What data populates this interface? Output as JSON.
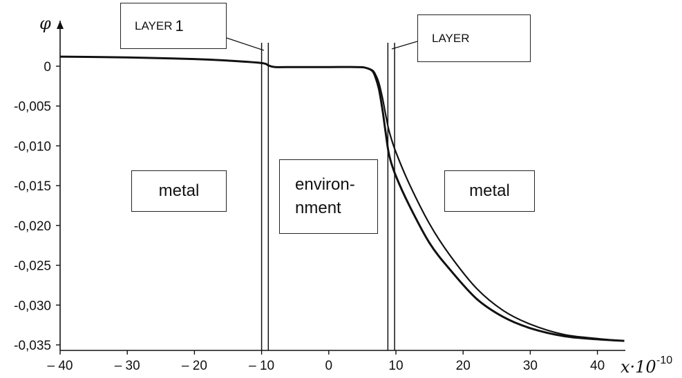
{
  "chart_data": {
    "type": "line",
    "title": "",
    "ylabel": "φ",
    "xlabel": "x·10",
    "xlabel_exponent": "-10",
    "xlim": [
      -40,
      44
    ],
    "ylim": [
      -0.035,
      0.002
    ],
    "x_ticks": [
      -40,
      -30,
      -20,
      -10,
      0,
      10,
      20,
      30,
      40
    ],
    "x_tick_labels": [
      "– 40",
      "– 30",
      "– 20",
      "– 10",
      "0",
      "10",
      "20",
      "30",
      "40"
    ],
    "y_ticks": [
      0,
      -0.005,
      -0.01,
      -0.015,
      -0.02,
      -0.025,
      -0.03,
      -0.035
    ],
    "y_tick_labels": [
      "0",
      "-0,005",
      "-0,010",
      "-0,015",
      "-0,020",
      "-0,025",
      "-0,030",
      "-0,035"
    ],
    "grid": false,
    "series": [
      {
        "x": [
          -40,
          -30,
          -20,
          -15,
          -10,
          -9,
          -8,
          -5,
          0,
          4,
          5.5,
          6.5,
          7,
          7.5,
          8,
          8.5,
          9,
          10,
          12,
          15,
          18,
          22,
          26,
          30,
          35,
          40,
          44
        ],
        "y": [
          0.0012,
          0.0011,
          0.0009,
          0.0007,
          0.0004,
          0.0001,
          -0.0001,
          -0.0001,
          -0.0001,
          -0.0001,
          -0.0002,
          -0.0006,
          -0.0015,
          -0.003,
          -0.0055,
          -0.0085,
          -0.0112,
          -0.0138,
          -0.0175,
          -0.0222,
          -0.0255,
          -0.0292,
          -0.0315,
          -0.0329,
          -0.0339,
          -0.0343,
          -0.0345
        ]
      },
      {
        "x": [
          -40,
          -30,
          -20,
          -15,
          -10,
          -9,
          -8,
          -5,
          0,
          4,
          5.5,
          6.5,
          7,
          7.5,
          8,
          8.5,
          9,
          10,
          12,
          15,
          18,
          22,
          26,
          30,
          35,
          40,
          44
        ],
        "y": [
          0.0012,
          0.0011,
          0.0009,
          0.0007,
          0.0004,
          0.0001,
          -0.0001,
          -0.0001,
          -0.0001,
          -0.0001,
          -0.0002,
          -0.0005,
          -0.0011,
          -0.0022,
          -0.004,
          -0.0062,
          -0.0082,
          -0.0108,
          -0.0148,
          -0.0198,
          -0.0237,
          -0.0279,
          -0.0307,
          -0.0324,
          -0.0337,
          -0.0342,
          -0.0345
        ]
      }
    ],
    "boundary_lines_x": [
      -10,
      -9,
      8.8,
      9.8
    ],
    "annotations": [
      {
        "text": "metal",
        "region": "left"
      },
      {
        "text": "environment",
        "lines": [
          "environ-",
          "nment"
        ],
        "region": "center"
      },
      {
        "text": "metal",
        "region": "right"
      },
      {
        "text": "LAYER",
        "number": "1",
        "points_to": "left-boundary"
      },
      {
        "text": "LAYER",
        "points_to": "right-boundary"
      }
    ]
  },
  "labels": {
    "metal_left": "metal",
    "env_line1": "environ-",
    "env_line2": "nment",
    "metal_right": "metal",
    "layer1_text": "LAYER",
    "layer1_num": "1",
    "layer2_text": "LAYER"
  }
}
